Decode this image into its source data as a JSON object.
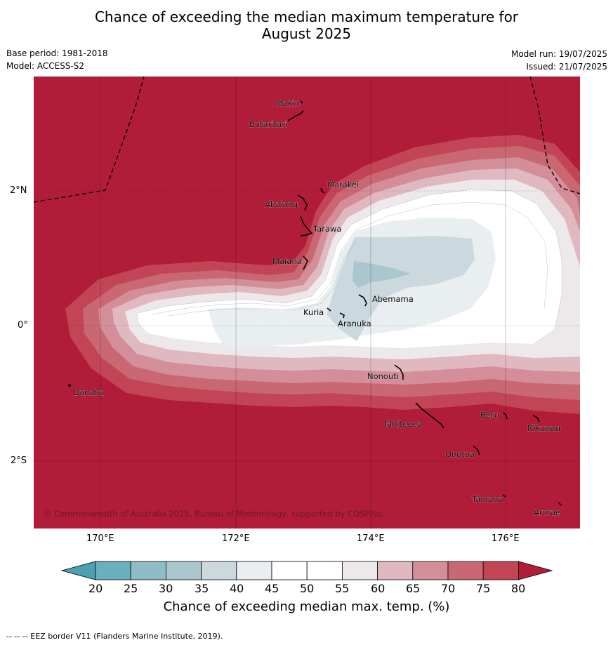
{
  "title_line1": "Chance of exceeding the median maximum temperature for",
  "title_line2": "August 2025",
  "meta": {
    "base_period": "Base period: 1981-2018",
    "model": "Model: ACCESS-S2",
    "model_run": "Model run: 19/07/2025",
    "issued": "Issued: 21/07/2025"
  },
  "axes": {
    "lon_ticks": [
      "170°E",
      "172°E",
      "174°E",
      "176°E"
    ],
    "lat_ticks": [
      "2°N",
      "0°",
      "2°S"
    ]
  },
  "places": {
    "makin": "Makin",
    "butaritari": "Butaritari",
    "marakei": "Marakei",
    "abaiang": "Abaiang",
    "tarawa": "Tarawa",
    "maiana": "Maiana",
    "abemama": "Abemama",
    "kuria": "Kuria",
    "aranuka": "Aranuka",
    "nonouti": "Nonouti",
    "banaba": "Banaba",
    "beru": "Beru",
    "nikunau": "Nikunau",
    "tabiteuea": "Tabiteuea",
    "onotoa": "Onotoa",
    "tamana": "Tamana",
    "arorae": "Arorae"
  },
  "copyright": "© Commonwealth of Australia 2025, Bureau of Meteorology, supported by COSPPac",
  "colorbar": {
    "ticks": [
      "20",
      "25",
      "30",
      "35",
      "40",
      "45",
      "50",
      "55",
      "60",
      "65",
      "70",
      "75",
      "80"
    ],
    "label": "Chance of exceeding median max. temp. (%)",
    "colors": {
      "below20": "#4aa1b1",
      "20-25": "#6aafbe",
      "25-30": "#8ebcc7",
      "30-35": "#a9c7cd",
      "35-40": "#cbd9de",
      "40-45": "#e9eef1",
      "45-50": "#ffffff",
      "50-55": "#ffffff",
      "55-60": "#ede9eb",
      "60-65": "#e0b9c0",
      "65-70": "#d48e99",
      "70-75": "#c96873",
      "75-80": "#c24555",
      "above80": "#b11d39"
    }
  },
  "footer": "--  --  -- EEZ border V11 (Flanders Marine Institute, 2019)."
}
